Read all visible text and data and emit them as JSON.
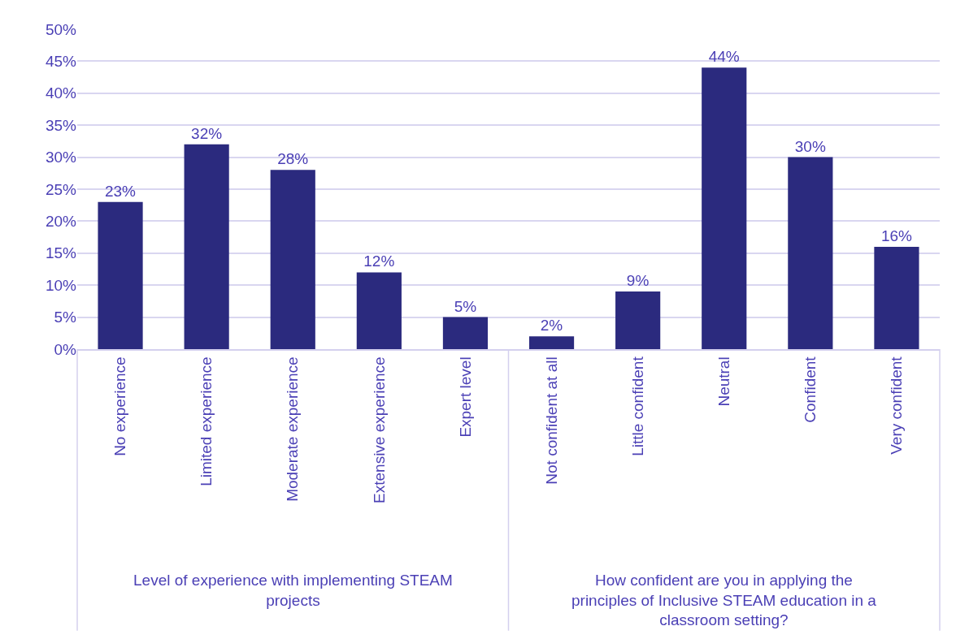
{
  "chart_data": {
    "type": "bar",
    "categories": [
      "No experience",
      "Limited experience",
      "Moderate experience",
      "Extensive experience",
      "Expert level",
      "Not confident at all",
      "Little confident",
      "Neutral",
      "Confident",
      "Very confident"
    ],
    "values": [
      23,
      32,
      28,
      12,
      5,
      2,
      9,
      44,
      30,
      16
    ],
    "color": "#2b2a7e",
    "value_labels": [
      "23%",
      "32%",
      "28%",
      "12%",
      "5%",
      "2%",
      "9%",
      "44%",
      "30%",
      "16%"
    ],
    "ylim": [
      0,
      50
    ],
    "yticks": [
      {
        "value": 0,
        "label": "0%"
      },
      {
        "value": 5,
        "label": "5%"
      },
      {
        "value": 10,
        "label": "10%"
      },
      {
        "value": 15,
        "label": "15%"
      },
      {
        "value": 20,
        "label": "20%"
      },
      {
        "value": 25,
        "label": "25%"
      },
      {
        "value": 30,
        "label": "30%"
      },
      {
        "value": 35,
        "label": "35%"
      },
      {
        "value": 40,
        "label": "40%"
      },
      {
        "value": 45,
        "label": "45%"
      },
      {
        "value": 50,
        "label": "50%"
      }
    ],
    "grid": "y",
    "annotations": [
      "Level of experience with implementing STEAM projects",
      "How confident are you in applying the principles of Inclusive STEAM education in a classroom setting?"
    ]
  }
}
